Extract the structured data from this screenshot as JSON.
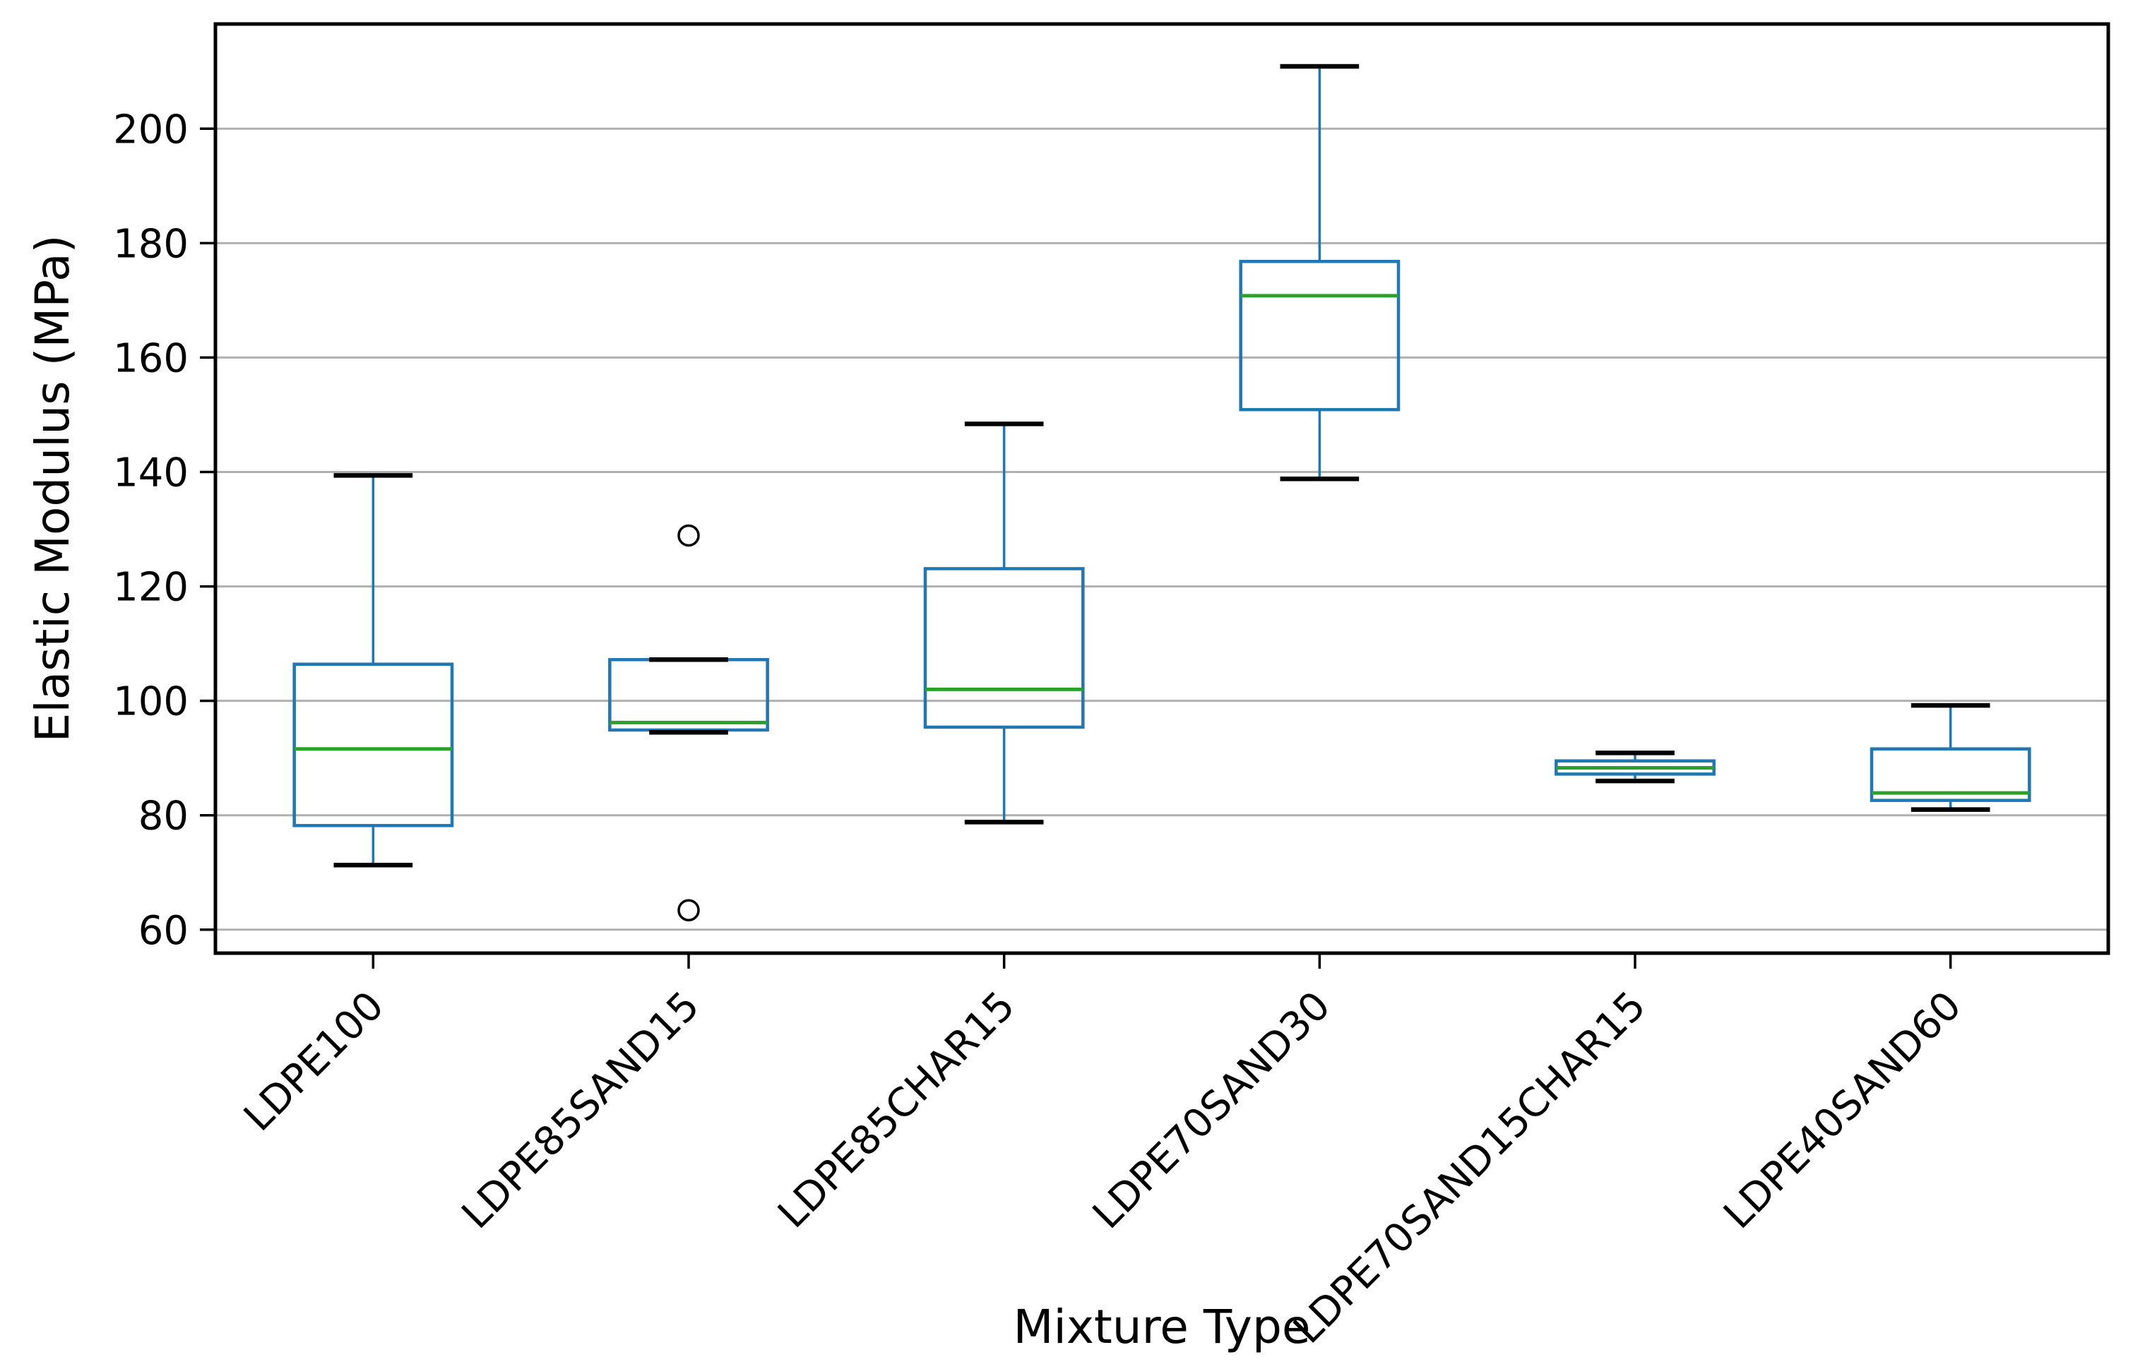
{
  "chart_data": {
    "type": "box",
    "title": "",
    "xlabel": "Mixture Type",
    "ylabel": "Elastic Modulus (MPa)",
    "ylim": [
      55.9,
      218.3
    ],
    "yticks": [
      60,
      80,
      100,
      120,
      140,
      160,
      180,
      200
    ],
    "grid": true,
    "legend": "none",
    "categories": [
      "LDPE100",
      "LDPE85SAND15",
      "LDPE85CHAR15",
      "LDPE70SAND30",
      "LDPE70SAND15CHAR15",
      "LDPE40SAND60"
    ],
    "series": [
      {
        "name": "LDPE100",
        "whisker_low": 71.3,
        "q1": 78.2,
        "median": 91.6,
        "q3": 106.4,
        "whisker_high": 139.4,
        "outliers": []
      },
      {
        "name": "LDPE85SAND15",
        "whisker_low": 94.5,
        "q1": 94.9,
        "median": 96.2,
        "q3": 107.2,
        "whisker_high": 107.2,
        "outliers": [
          128.9,
          63.4
        ]
      },
      {
        "name": "LDPE85CHAR15",
        "whisker_low": 78.8,
        "q1": 95.4,
        "median": 102.0,
        "q3": 123.1,
        "whisker_high": 148.4,
        "outliers": []
      },
      {
        "name": "LDPE70SAND30",
        "whisker_low": 138.8,
        "q1": 150.9,
        "median": 170.8,
        "q3": 176.8,
        "whisker_high": 210.9,
        "outliers": []
      },
      {
        "name": "LDPE70SAND15CHAR15",
        "whisker_low": 86.0,
        "q1": 87.2,
        "median": 88.3,
        "q3": 89.5,
        "whisker_high": 90.9,
        "outliers": []
      },
      {
        "name": "LDPE40SAND60",
        "whisker_low": 81.0,
        "q1": 82.6,
        "median": 83.9,
        "q3": 91.6,
        "whisker_high": 99.2,
        "outliers": []
      }
    ],
    "colors": {
      "box": "#1f77b4",
      "whisker": "#1f77b4",
      "cap": "#000000",
      "median": "#2ca02c",
      "outlier_edge": "#000000",
      "gridline": "#b0b0b0",
      "spine": "#000000",
      "tick_label": "#000000"
    }
  }
}
